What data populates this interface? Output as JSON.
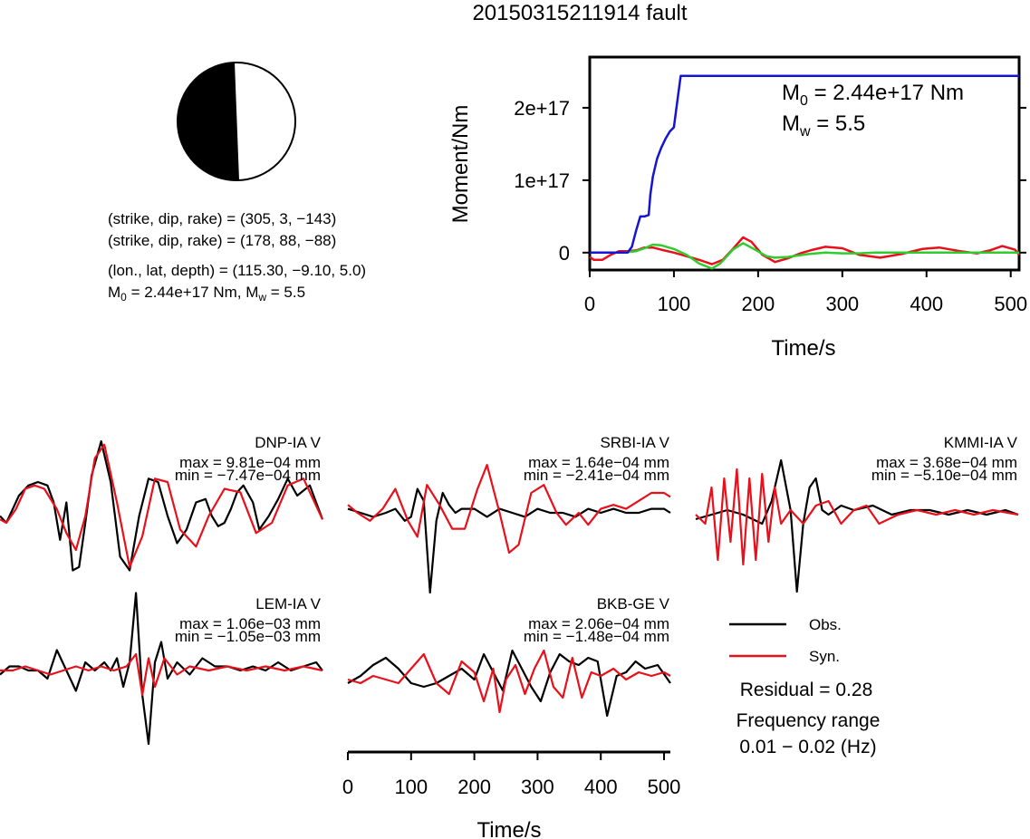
{
  "title": "20150315211914 fault",
  "mechanism": {
    "plane1": "(strike, dip, rake) = (305, 3, −143)",
    "plane2": "(strike, dip, rake) = (178, 88, −88)",
    "location": "(lon., lat, depth) = (115.30, −9.10, 5.0)",
    "m0_prefix": "M",
    "m0_sub": "0",
    "m0_text": " = 2.44e+17 Nm, M",
    "mw_sub": "w",
    "mw_text": " = 5.5"
  },
  "moment_panel": {
    "ylabel": "Moment/Nm",
    "xlabel": "Time/s",
    "m0_label": "M",
    "m0_sub": "0",
    "m0_value": " = 2.44e+17 Nm",
    "mw_label": "M",
    "mw_sub": "w",
    "mw_value": " = 5.5"
  },
  "waveform_axis": {
    "xlabel": "Time/s",
    "ticks": [
      "0",
      "100",
      "200",
      "300",
      "400",
      "500"
    ]
  },
  "legend": {
    "obs": "Obs.",
    "syn": "Syn.",
    "residual": "Residual = 0.28",
    "freq_label": "Frequency range",
    "freq_value": "0.01 − 0.02 (Hz)"
  },
  "colors": {
    "observed": "#000000",
    "synthetic": "#e8101a",
    "moment_total": "#1414d2",
    "moment_rate_green": "#2ecc2e",
    "moment_rate_red": "#e8101a",
    "beachball_fill": "#000000"
  },
  "chart_data": [
    {
      "type": "line",
      "name": "moment",
      "xlabel": "Time/s",
      "ylabel": "Moment/Nm",
      "xlim": [
        0,
        510
      ],
      "ylim": [
        -2.4e+16,
        2.7e+17
      ],
      "xticks": [
        0,
        100,
        200,
        300,
        400,
        500
      ],
      "xtick_labels": [
        "0",
        "100",
        "200",
        "300",
        "400",
        "500"
      ],
      "yticks": [
        0,
        1e+17,
        2e+17
      ],
      "ytick_labels": [
        "0",
        "1e+17",
        "2e+17"
      ],
      "series": [
        {
          "color": "#1414d2",
          "x": [
            0,
            45,
            50,
            55,
            60,
            62,
            65,
            70,
            72,
            75,
            80,
            85,
            90,
            95,
            100,
            103,
            108,
            510
          ],
          "y": [
            0,
            0,
            8000000000000000.0,
            3e+16,
            5e+16,
            5e+16,
            5e+16,
            5.2e+16,
            8e+16,
            1.05e+17,
            1.3e+17,
            1.45e+17,
            1.57e+17,
            1.67e+17,
            1.73e+17,
            2e+17,
            2.44e+17,
            2.44e+17
          ]
        },
        {
          "color": "#2ecc2e",
          "x": [
            0,
            40,
            55,
            65,
            75,
            85,
            100,
            115,
            130,
            145,
            155,
            170,
            182,
            195,
            210,
            220,
            235,
            260,
            280,
            300,
            320,
            340,
            380,
            420,
            460,
            510
          ],
          "y": [
            0,
            0,
            2000000000000000.0,
            6000000000000000.0,
            1.1e+16,
            1e+16,
            5000000000000000.0,
            -3000000000000000.0,
            -1.5e+16,
            -2.2e+16,
            -1.5e+16,
            4000000000000000.0,
            1.3e+16,
            5000000000000000.0,
            -5000000000000000.0,
            -7000000000000000.0,
            -6000000000000000.0,
            -2000000000000000.0,
            0,
            -1000000000000000.0,
            -1000000000000000.0,
            0,
            0,
            0,
            0,
            0
          ]
        },
        {
          "color": "#e8101a",
          "x": [
            0,
            5,
            15,
            25,
            35,
            45,
            55,
            65,
            75,
            85,
            100,
            115,
            130,
            145,
            158,
            170,
            182,
            192,
            205,
            220,
            235,
            250,
            265,
            280,
            300,
            320,
            345,
            370,
            395,
            415,
            440,
            460,
            475,
            490,
            505,
            510
          ],
          "y": [
            -6000000000000000.0,
            -1e+16,
            -1e+16,
            -3000000000000000.0,
            2000000000000000.0,
            2000000000000000.0,
            3000000000000000.0,
            7000000000000000.0,
            7000000000000000.0,
            4000000000000000.0,
            0,
            -5000000000000000.0,
            -1e+16,
            -1.6e+16,
            -1e+16,
            5000000000000000.0,
            2.1e+16,
            1.5e+16,
            -3000000000000000.0,
            -1.3e+16,
            -8000000000000000.0,
            -1000000000000000.0,
            4000000000000000.0,
            8000000000000000.0,
            6000000000000000.0,
            -3000000000000000.0,
            -7000000000000000.0,
            -2000000000000000.0,
            5000000000000000.0,
            7000000000000000.0,
            2000000000000000.0,
            -1000000000000000.0,
            3000000000000000.0,
            9000000000000000.0,
            4000000000000000.0,
            -3000000000000000.0
          ]
        }
      ]
    },
    {
      "type": "line",
      "name": "waveforms",
      "xlabel": "Time/s",
      "xlim": [
        0,
        510
      ],
      "traces": [
        {
          "station": "DNP-IA V",
          "max": "max = 9.81e−04 mm",
          "min": "min = −7.47e−04 mm",
          "obs_x": [
            0,
            10,
            20,
            30,
            45,
            60,
            75,
            85,
            95,
            105,
            115,
            125,
            135,
            145,
            160,
            175,
            190,
            205,
            220,
            235,
            250,
            265,
            280,
            295,
            310,
            325,
            335,
            345,
            355,
            365,
            375,
            385,
            400,
            410,
            425,
            440,
            455,
            470,
            490,
            510
          ],
          "obs_y": [
            -0.1,
            -0.2,
            0.0,
            0.2,
            0.35,
            0.4,
            0.35,
            0.1,
            -0.45,
            0.1,
            -0.9,
            -0.85,
            -0.2,
            0.5,
            1.0,
            0.4,
            -0.7,
            -0.9,
            -0.1,
            0.45,
            0.4,
            -0.1,
            -0.5,
            -0.3,
            0.1,
            0.15,
            -0.1,
            -0.25,
            -0.2,
            0.0,
            0.25,
            0.35,
            0.1,
            -0.3,
            -0.1,
            0.15,
            0.45,
            0.2,
            0.35,
            -0.15
          ],
          "syn_x": [
            0,
            10,
            25,
            40,
            55,
            70,
            90,
            105,
            120,
            135,
            150,
            165,
            185,
            205,
            225,
            245,
            265,
            285,
            310,
            330,
            355,
            380,
            405,
            430,
            455,
            480,
            510
          ],
          "syn_y": [
            -0.15,
            -0.2,
            0.0,
            0.3,
            0.35,
            0.3,
            0.0,
            -0.35,
            -0.6,
            -0.1,
            0.75,
            0.95,
            0.1,
            -0.85,
            -0.4,
            0.45,
            0.4,
            -0.3,
            -0.55,
            -0.1,
            0.3,
            0.25,
            -0.35,
            -0.2,
            0.35,
            0.45,
            -0.15
          ]
        },
        {
          "station": "SRBI-IA V",
          "max": "max = 1.64e−04 mm",
          "min": "min = −2.41e−04 mm",
          "obs_x": [
            0,
            20,
            40,
            60,
            75,
            90,
            100,
            110,
            120,
            130,
            140,
            150,
            160,
            170,
            180,
            200,
            220,
            240,
            260,
            280,
            300,
            320,
            340,
            360,
            380,
            400,
            420,
            440,
            460,
            480,
            500,
            510
          ],
          "obs_y": [
            0.05,
            0.0,
            -0.05,
            0.0,
            0.05,
            -0.1,
            -0.05,
            0.3,
            0.15,
            -1.0,
            -0.1,
            0.25,
            0.1,
            0.0,
            0.05,
            0.05,
            -0.05,
            0.05,
            0.0,
            -0.05,
            0.05,
            0.0,
            0.0,
            -0.05,
            0.05,
            0.0,
            0.05,
            0.0,
            0.0,
            0.05,
            0.05,
            0.0
          ],
          "syn_x": [
            0,
            15,
            35,
            55,
            75,
            95,
            110,
            125,
            145,
            165,
            185,
            205,
            220,
            240,
            255,
            270,
            290,
            310,
            330,
            345,
            365,
            380,
            400,
            420,
            440,
            460,
            480,
            500,
            510
          ],
          "syn_y": [
            0.1,
            0.0,
            -0.1,
            0.05,
            0.3,
            -0.1,
            -0.3,
            0.35,
            0.1,
            -0.2,
            -0.2,
            0.3,
            0.6,
            0.0,
            -0.5,
            -0.4,
            0.25,
            0.35,
            0.0,
            -0.15,
            0.0,
            -0.15,
            0.05,
            0.1,
            0.05,
            0.15,
            0.25,
            0.25,
            0.2
          ]
        },
        {
          "station": "KMMI-IA V",
          "max": "max = 3.68e−04 mm",
          "min": "min = −5.10e−04 mm",
          "obs_x": [
            0,
            25,
            50,
            75,
            90,
            105,
            120,
            135,
            150,
            160,
            170,
            180,
            190,
            200,
            210,
            230,
            250,
            280,
            310,
            340,
            370,
            400,
            430,
            460,
            490,
            510
          ],
          "obs_y": [
            -0.05,
            0.0,
            0.05,
            0.0,
            -0.05,
            -0.1,
            0.15,
            0.6,
            0.05,
            -0.85,
            -0.1,
            0.3,
            0.4,
            0.05,
            0.0,
            0.1,
            0.05,
            0.1,
            0.0,
            0.05,
            0.05,
            0.0,
            0.05,
            0.0,
            0.05,
            0.0
          ],
          "syn_x": [
            0,
            15,
            25,
            35,
            45,
            55,
            65,
            75,
            85,
            95,
            105,
            115,
            125,
            135,
            150,
            170,
            190,
            210,
            230,
            250,
            270,
            290,
            320,
            350,
            380,
            410,
            440,
            470,
            510
          ],
          "syn_y": [
            0.0,
            -0.1,
            0.3,
            -0.5,
            0.4,
            -0.3,
            0.5,
            -0.55,
            0.4,
            -0.5,
            0.45,
            -0.3,
            0.3,
            -0.1,
            0.05,
            -0.1,
            0.1,
            0.15,
            -0.1,
            0.05,
            0.1,
            -0.1,
            0.0,
            0.05,
            0.0,
            0.05,
            0.0,
            0.05,
            0.0
          ]
        },
        {
          "station": "LEM-IA V",
          "max": "max = 1.06e−03 mm",
          "min": "min = −1.05e−03 mm",
          "obs_x": [
            0,
            15,
            30,
            45,
            60,
            75,
            90,
            105,
            120,
            135,
            150,
            165,
            175,
            185,
            195,
            205,
            215,
            225,
            235,
            245,
            255,
            265,
            280,
            300,
            320,
            340,
            360,
            380,
            400,
            420,
            440,
            460,
            480,
            500,
            510
          ],
          "obs_y": [
            -0.05,
            0.05,
            0.05,
            0.0,
            0.0,
            -0.1,
            0.25,
            0.0,
            -0.25,
            0.1,
            0.0,
            0.1,
            0.0,
            0.15,
            -0.2,
            0.1,
            0.95,
            -0.3,
            -0.9,
            0.1,
            0.35,
            -0.1,
            0.1,
            -0.05,
            0.15,
            0.05,
            0.05,
            0.0,
            0.05,
            0.0,
            0.1,
            0.0,
            0.05,
            0.1,
            0.0
          ],
          "syn_x": [
            0,
            20,
            40,
            60,
            80,
            100,
            120,
            140,
            160,
            180,
            200,
            215,
            225,
            235,
            245,
            260,
            280,
            300,
            330,
            360,
            390,
            420,
            450,
            480,
            510
          ],
          "syn_y": [
            0.0,
            0.0,
            0.05,
            0.0,
            -0.05,
            0.0,
            0.05,
            0.0,
            0.05,
            0.0,
            0.05,
            0.2,
            -0.3,
            0.15,
            -0.2,
            0.15,
            -0.05,
            0.05,
            0.0,
            0.05,
            0.0,
            0.05,
            0.0,
            0.05,
            0.0
          ]
        },
        {
          "station": "BKB-GE V",
          "max": "max = 2.06e−04 mm",
          "min": "min = −1.48e−04 mm",
          "obs_x": [
            0,
            20,
            40,
            60,
            80,
            100,
            120,
            140,
            160,
            180,
            200,
            215,
            230,
            245,
            260,
            275,
            290,
            305,
            320,
            335,
            350,
            365,
            380,
            395,
            410,
            425,
            440,
            455,
            470,
            490,
            510
          ],
          "obs_y": [
            -0.05,
            0.05,
            0.2,
            0.3,
            0.15,
            -0.05,
            -0.1,
            -0.05,
            0.05,
            0.15,
            0.0,
            0.35,
            0.1,
            -0.15,
            0.4,
            0.15,
            -0.1,
            -0.3,
            0.1,
            0.35,
            0.25,
            0.2,
            0.3,
            0.25,
            -0.5,
            0.05,
            0.1,
            0.25,
            0.15,
            0.2,
            -0.05
          ],
          "syn_x": [
            0,
            20,
            40,
            60,
            80,
            100,
            120,
            140,
            160,
            180,
            200,
            215,
            230,
            240,
            250,
            265,
            280,
            295,
            310,
            325,
            340,
            355,
            370,
            385,
            400,
            420,
            440,
            460,
            480,
            500,
            510
          ],
          "syn_y": [
            0.0,
            -0.05,
            0.05,
            0.0,
            -0.05,
            0.15,
            0.35,
            -0.05,
            -0.2,
            0.25,
            0.1,
            -0.3,
            0.15,
            -0.45,
            0.0,
            0.2,
            -0.2,
            0.15,
            0.4,
            -0.1,
            -0.25,
            0.3,
            -0.25,
            0.1,
            0.05,
            0.15,
            0.0,
            0.1,
            0.05,
            0.1,
            0.05
          ]
        }
      ]
    }
  ]
}
